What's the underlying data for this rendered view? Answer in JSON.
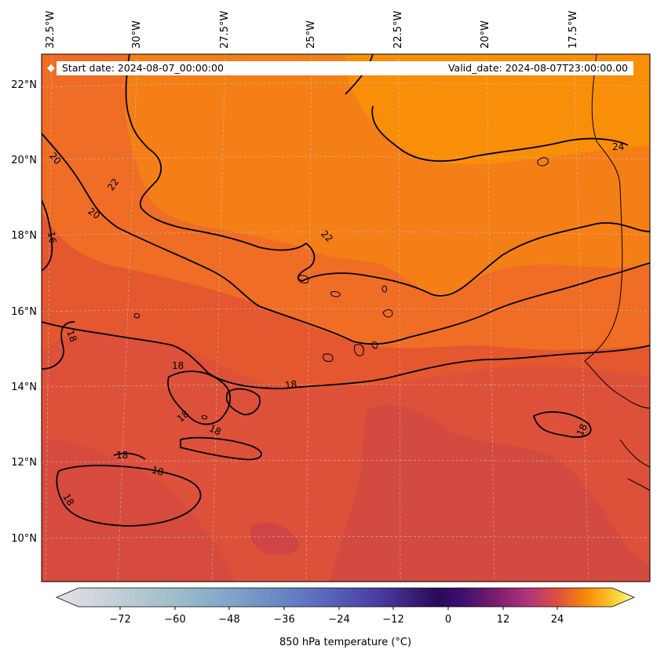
{
  "banner": {
    "start": "Start date: 2024-08-07_00:00:00",
    "valid": "Valid_date: 2024-08-07T23:00:00.00"
  },
  "lon_labels": [
    "32.5°W",
    "30°W",
    "27.5°W",
    "25°W",
    "22.5°W",
    "20°W",
    "17.5°W"
  ],
  "lat_labels": [
    "22°N",
    "20°N",
    "18°N",
    "16°N",
    "14°N",
    "12°N",
    "10°N"
  ],
  "contour_labels": [
    "20",
    "22",
    "20",
    "16",
    "22",
    "24",
    "18",
    "18",
    "18",
    "18",
    "18",
    "18",
    "18",
    "18",
    "18"
  ],
  "colorbar": {
    "ticks": [
      "−72",
      "−60",
      "−48",
      "−36",
      "−24",
      "−12",
      "0",
      "12",
      "24"
    ],
    "label": "850 hPa temperature (°C)",
    "colormap": "inferno-with-cool-low-end",
    "range": [
      -84,
      36
    ]
  },
  "colors": {
    "warm_orange": "#f98e09",
    "mid_orange": "#ef6d25",
    "red_orange": "#dd513a",
    "deep_red": "#cf4446",
    "contour": "#000000"
  }
}
